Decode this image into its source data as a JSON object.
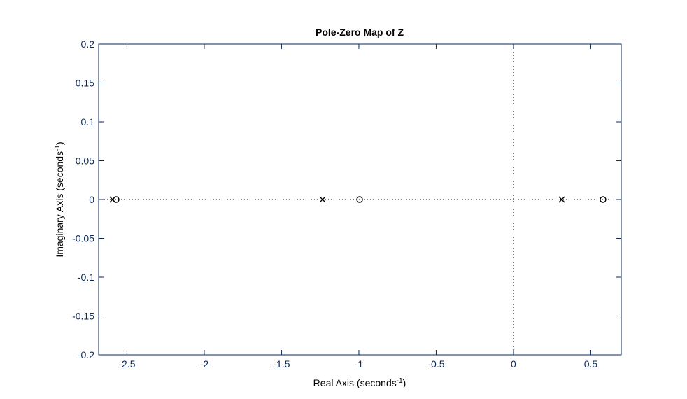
{
  "chart_data": {
    "type": "scatter",
    "title": "Pole-Zero Map of Z",
    "xlabel": {
      "text": "Real Axis (seconds",
      "superscript": "-1",
      "suffix": ")"
    },
    "ylabel": {
      "text": "Imaginary Axis (seconds",
      "superscript": "-1",
      "suffix": ")"
    },
    "xlim": [
      -2.683,
      0.697
    ],
    "ylim": [
      -0.2,
      0.2
    ],
    "xticks": [
      -2.5,
      -2,
      -1.5,
      -1,
      -0.5,
      0,
      0.5
    ],
    "yticks": [
      -0.2,
      -0.15,
      -0.1,
      -0.05,
      0,
      0.05,
      0.1,
      0.15,
      0.2
    ],
    "zero_lines": true,
    "series": [
      {
        "marker": "x",
        "color": "#000000",
        "x": [
          -2.593,
          -1.235,
          0.312
        ],
        "values": [
          0,
          0,
          0
        ]
      },
      {
        "marker": "o",
        "color": "#000000",
        "x": [
          -2.57,
          -0.995,
          0.579
        ],
        "values": [
          0,
          0,
          0
        ]
      }
    ]
  }
}
